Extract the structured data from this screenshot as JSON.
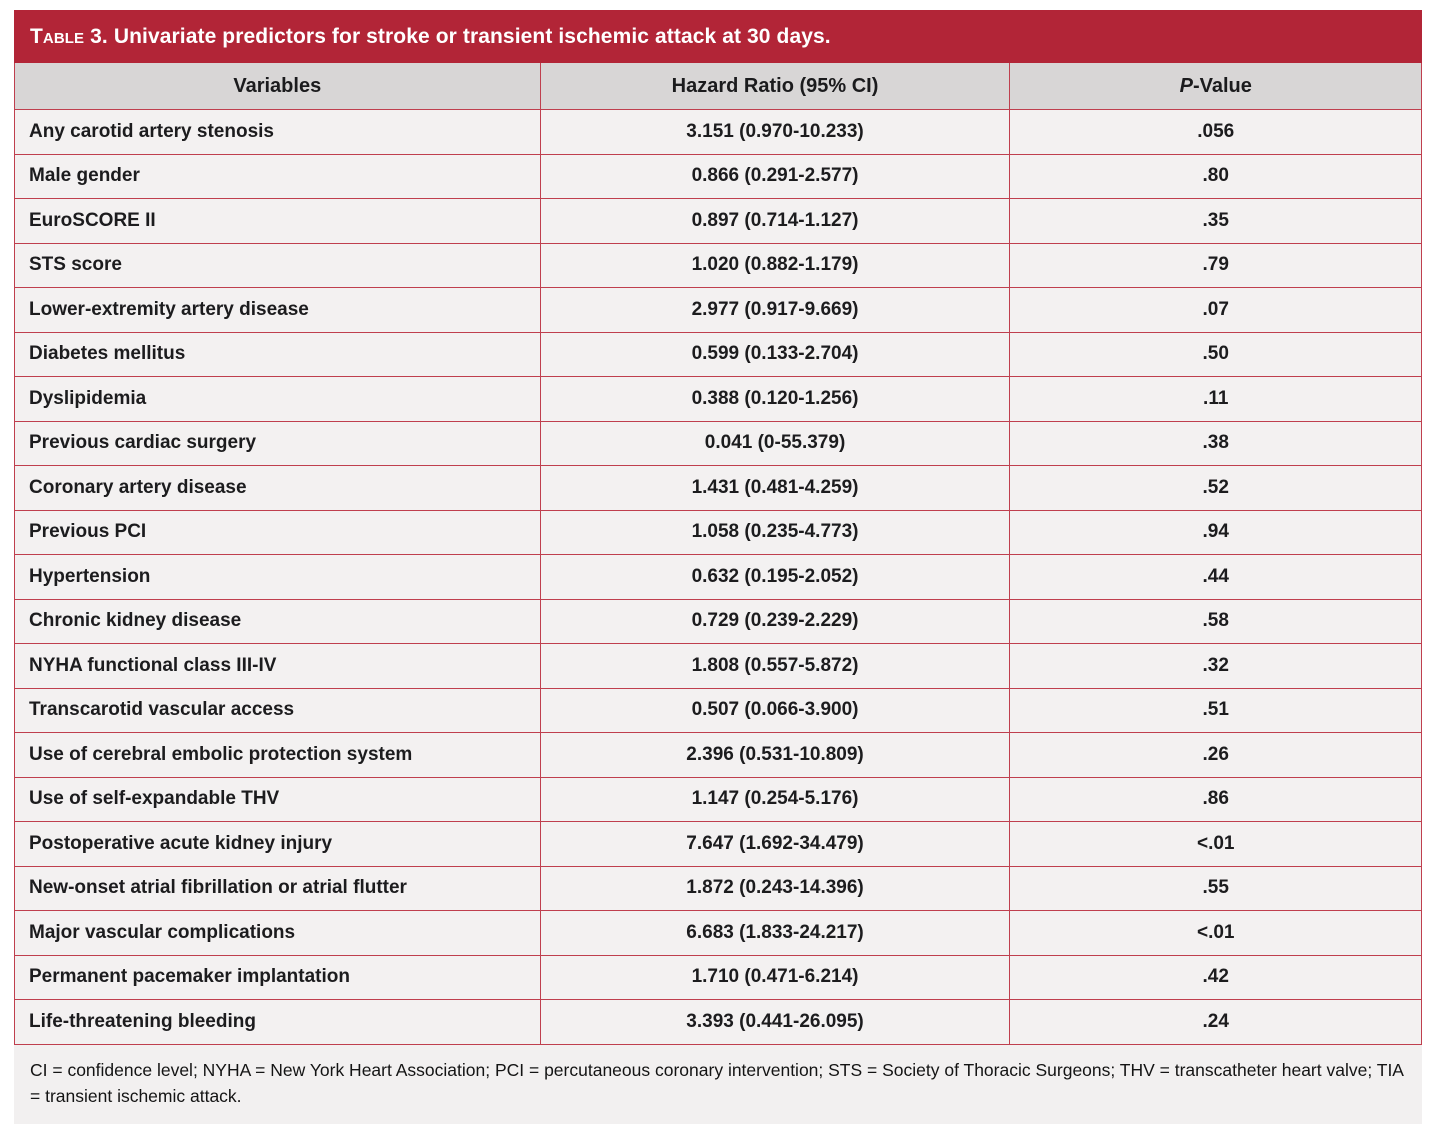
{
  "title": {
    "label": "Table 3.",
    "text": "Univariate predictors for stroke or transient ischemic attack at 30 days."
  },
  "colors": {
    "title_bar": "#b22537",
    "rule": "#bf3f4e",
    "header_bg": "#d8d6d6",
    "row_bg": "#f3f1f1",
    "footnote_bg": "#f2f0f0"
  },
  "table": {
    "headers": {
      "variables": "Variables",
      "hazard_ratio": "Hazard Ratio (95% CI)",
      "p_value_prefix": "P",
      "p_value_suffix": "-Value"
    },
    "rows": [
      {
        "variable": "Any carotid artery stenosis",
        "hazard_ratio": "3.151 (0.970-10.233)",
        "p_value": ".056"
      },
      {
        "variable": "Male gender",
        "hazard_ratio": "0.866 (0.291-2.577)",
        "p_value": ".80"
      },
      {
        "variable": "EuroSCORE II",
        "hazard_ratio": "0.897 (0.714-1.127)",
        "p_value": ".35"
      },
      {
        "variable": "STS score",
        "hazard_ratio": "1.020 (0.882-1.179)",
        "p_value": ".79"
      },
      {
        "variable": "Lower-extremity artery disease",
        "hazard_ratio": "2.977 (0.917-9.669)",
        "p_value": ".07"
      },
      {
        "variable": "Diabetes mellitus",
        "hazard_ratio": "0.599 (0.133-2.704)",
        "p_value": ".50"
      },
      {
        "variable": "Dyslipidemia",
        "hazard_ratio": "0.388 (0.120-1.256)",
        "p_value": ".11"
      },
      {
        "variable": "Previous cardiac surgery",
        "hazard_ratio": "0.041 (0-55.379)",
        "p_value": ".38"
      },
      {
        "variable": "Coronary artery disease",
        "hazard_ratio": "1.431 (0.481-4.259)",
        "p_value": ".52"
      },
      {
        "variable": "Previous PCI",
        "hazard_ratio": "1.058 (0.235-4.773)",
        "p_value": ".94"
      },
      {
        "variable": "Hypertension",
        "hazard_ratio": "0.632 (0.195-2.052)",
        "p_value": ".44"
      },
      {
        "variable": "Chronic kidney disease",
        "hazard_ratio": "0.729 (0.239-2.229)",
        "p_value": ".58"
      },
      {
        "variable": "NYHA functional class III-IV",
        "hazard_ratio": "1.808 (0.557-5.872)",
        "p_value": ".32"
      },
      {
        "variable": "Transcarotid vascular access",
        "hazard_ratio": "0.507 (0.066-3.900)",
        "p_value": ".51"
      },
      {
        "variable": "Use of cerebral embolic protection system",
        "hazard_ratio": "2.396 (0.531-10.809)",
        "p_value": ".26"
      },
      {
        "variable": "Use of self-expandable THV",
        "hazard_ratio": "1.147 (0.254-5.176)",
        "p_value": ".86"
      },
      {
        "variable": "Postoperative acute kidney injury",
        "hazard_ratio": "7.647 (1.692-34.479)",
        "p_value": "<.01"
      },
      {
        "variable": "New-onset atrial fibrillation or atrial flutter",
        "hazard_ratio": "1.872 (0.243-14.396)",
        "p_value": ".55"
      },
      {
        "variable": "Major vascular complications",
        "hazard_ratio": "6.683 (1.833-24.217)",
        "p_value": "<.01"
      },
      {
        "variable": "Permanent pacemaker implantation",
        "hazard_ratio": "1.710 (0.471-6.214)",
        "p_value": ".42"
      },
      {
        "variable": "Life-threatening bleeding",
        "hazard_ratio": "3.393 (0.441-26.095)",
        "p_value": ".24"
      }
    ]
  },
  "footnote": "CI = confidence level; NYHA = New York Heart Association; PCI = percutaneous coronary intervention; STS = Society of Thoracic Surgeons; THV = transcatheter heart valve; TIA = transient ischemic attack."
}
